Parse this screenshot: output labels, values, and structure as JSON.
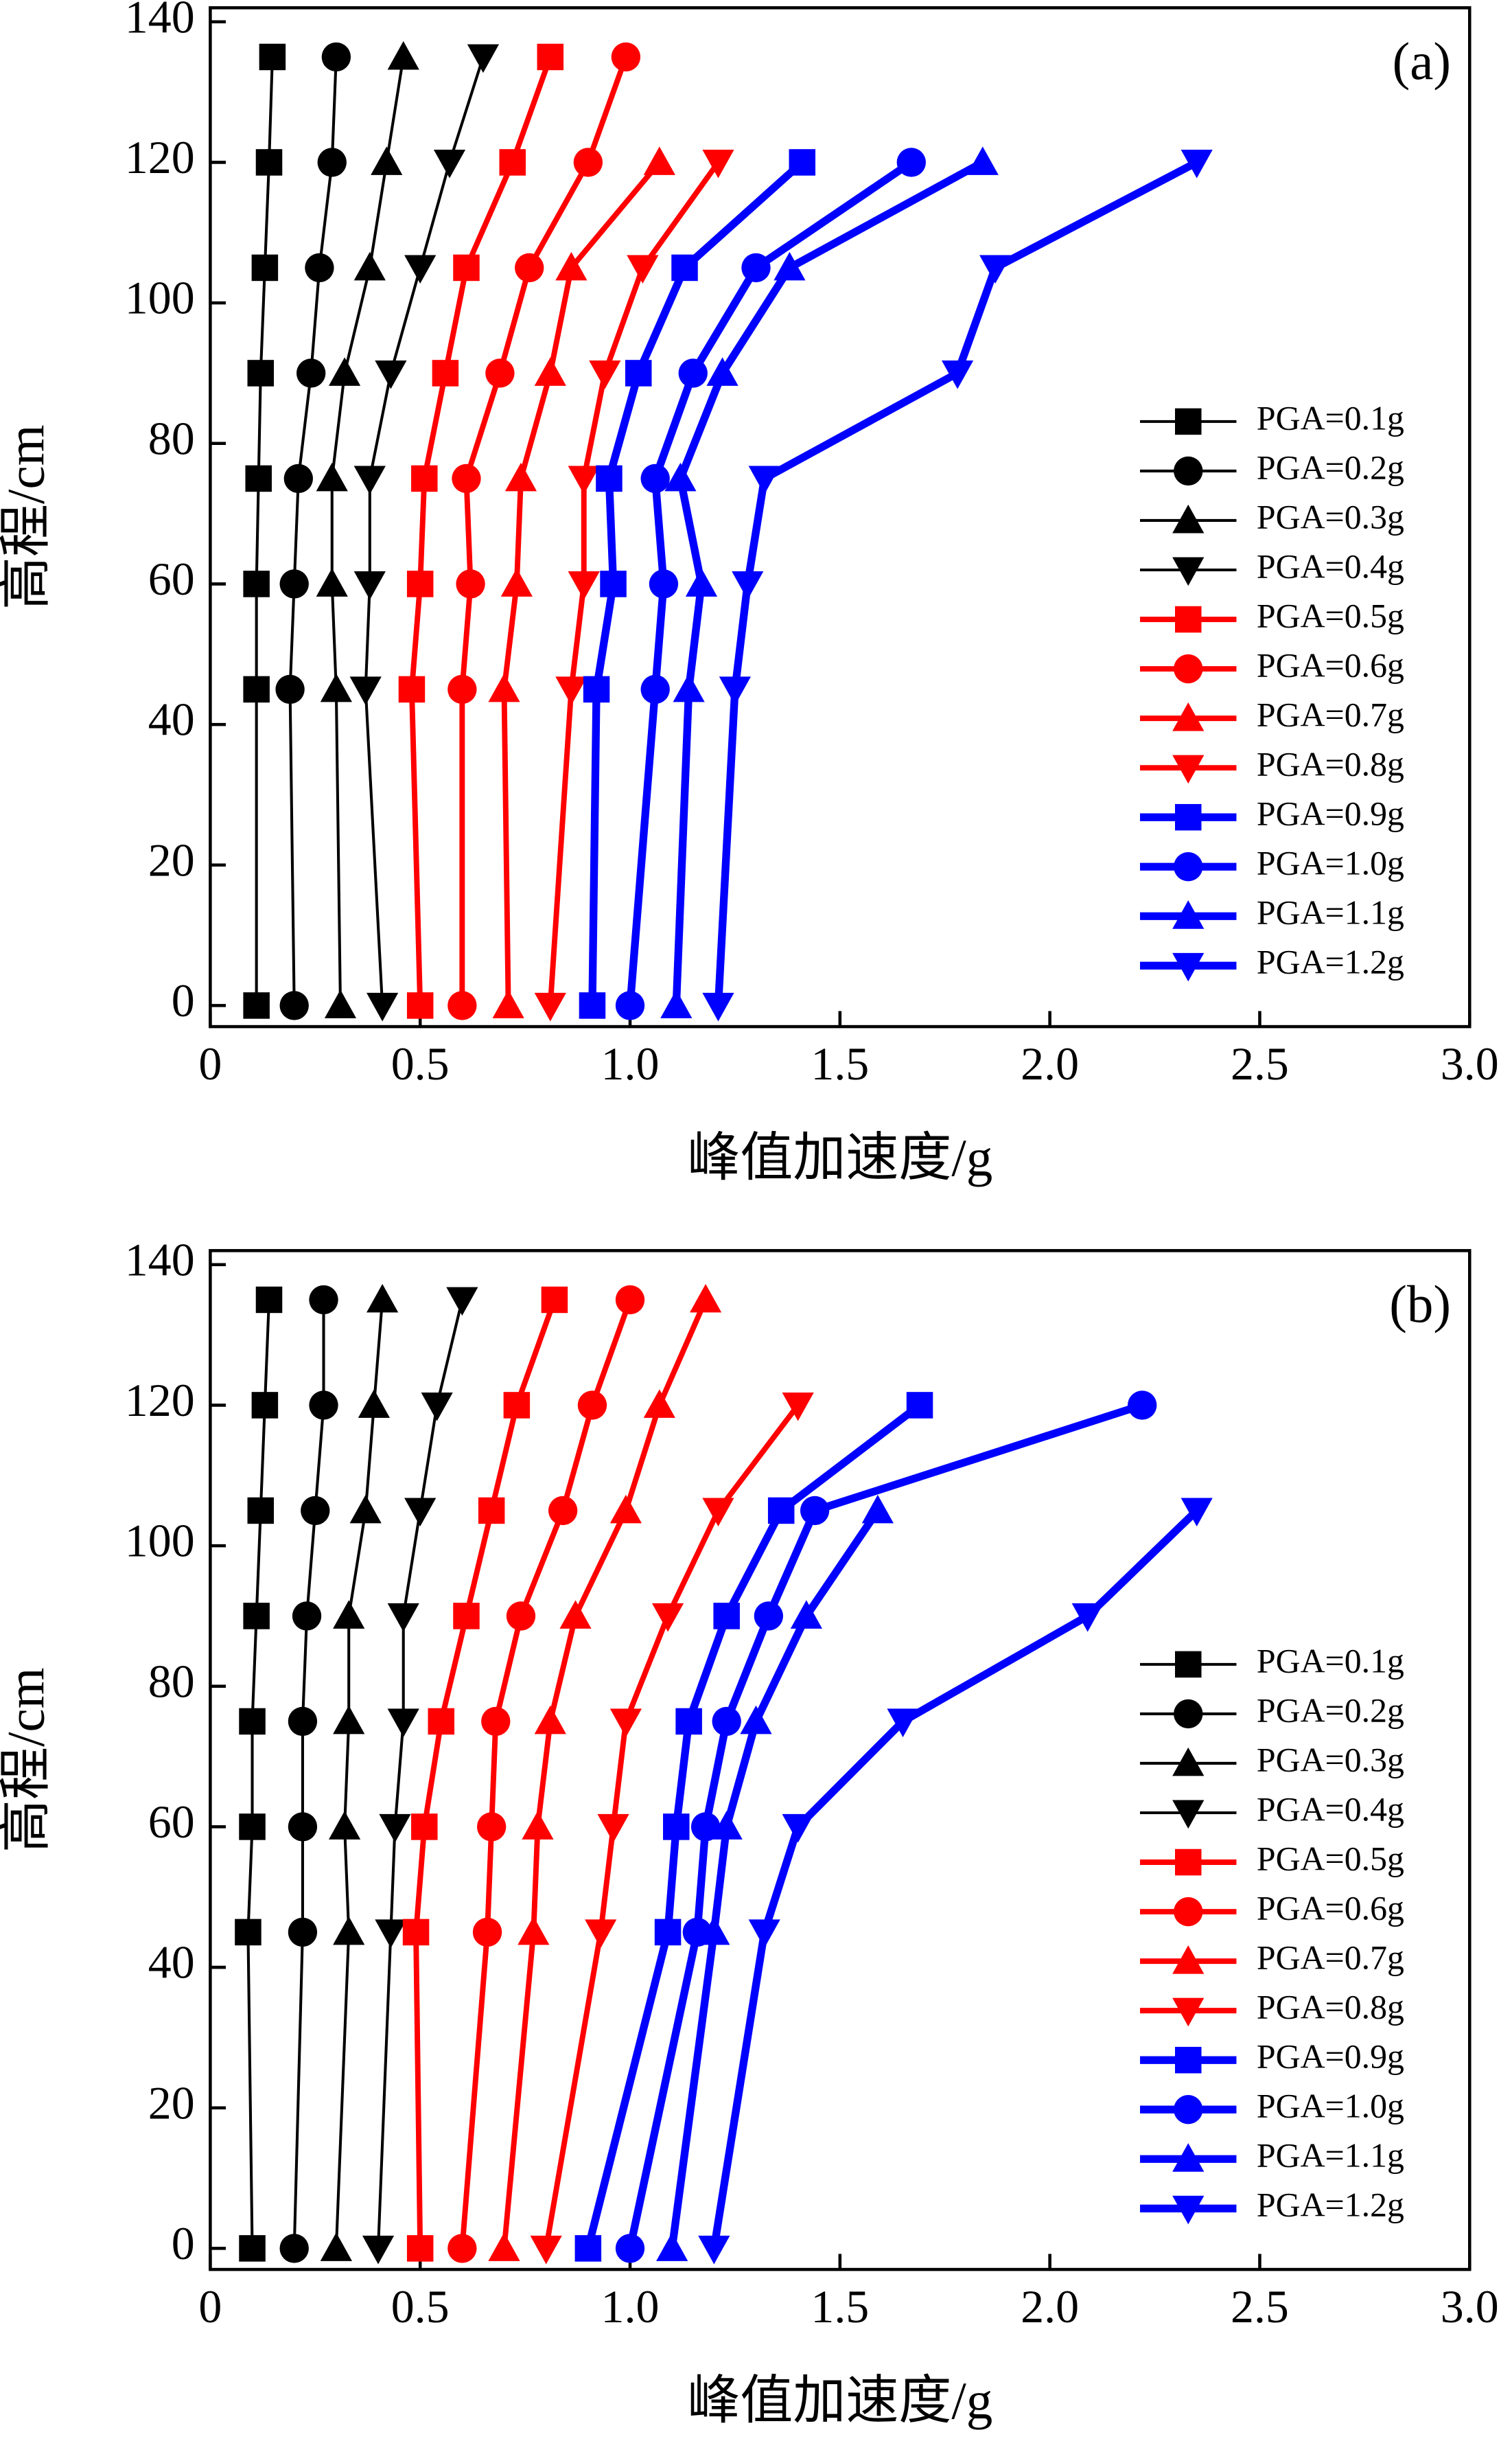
{
  "chart_data": [
    {
      "type": "line",
      "label": "(a)",
      "xlabel": "峰值加速度/g",
      "ylabel": "高程/cm",
      "y": [
        0,
        45,
        60,
        75,
        90,
        105,
        120,
        135
      ],
      "xlim": [
        0,
        3
      ],
      "xticks": [
        0,
        0.5,
        {
          "value": 1,
          "label": "1.0"
        },
        1.5,
        {
          "value": 2,
          "label": "2.0"
        },
        2.5,
        {
          "value": 3,
          "label": "3.0"
        }
      ],
      "ylim": [
        -3,
        142
      ],
      "yticks": [
        0,
        20,
        40,
        60,
        80,
        100,
        120,
        140
      ],
      "legend": "right",
      "series": [
        {
          "name": "PGA=0.1g",
          "color": "#000000",
          "marker": "square",
          "values": [
            0.11,
            0.11,
            0.11,
            0.115,
            0.12,
            0.13,
            0.14,
            0.148
          ]
        },
        {
          "name": "PGA=0.2g",
          "color": "#000000",
          "marker": "circle",
          "values": [
            0.2,
            0.19,
            0.2,
            0.21,
            0.24,
            0.26,
            0.29,
            0.3
          ]
        },
        {
          "name": "PGA=0.3g",
          "color": "#000000",
          "marker": "triangle-up",
          "values": [
            0.31,
            0.3,
            0.29,
            0.29,
            0.32,
            0.38,
            0.42,
            0.46
          ]
        },
        {
          "name": "PGA=0.4g",
          "color": "#000000",
          "marker": "triangle-down",
          "values": [
            0.41,
            0.37,
            0.38,
            0.38,
            0.43,
            0.5,
            0.57,
            0.65
          ]
        },
        {
          "name": "PGA=0.5g",
          "color": "#ff0000",
          "marker": "square",
          "values": [
            0.5,
            0.48,
            0.5,
            0.51,
            0.56,
            0.61,
            0.72,
            0.81
          ]
        },
        {
          "name": "PGA=0.6g",
          "color": "#ff0000",
          "marker": "circle",
          "values": [
            0.6,
            0.6,
            0.62,
            0.61,
            0.69,
            0.76,
            0.9,
            0.99
          ]
        },
        {
          "name": "PGA=0.7g",
          "color": "#ff0000",
          "marker": "triangle-up",
          "values": [
            0.71,
            0.7,
            0.73,
            0.74,
            0.81,
            0.86,
            1.07,
            null
          ]
        },
        {
          "name": "PGA=0.8g",
          "color": "#ff0000",
          "marker": "triangle-down",
          "values": [
            0.81,
            0.86,
            0.89,
            0.89,
            0.94,
            1.03,
            1.21,
            null
          ]
        },
        {
          "name": "PGA=0.9g",
          "color": "#0000ff",
          "marker": "square",
          "values": [
            0.91,
            0.92,
            0.96,
            0.95,
            1.02,
            1.13,
            1.41,
            null
          ]
        },
        {
          "name": "PGA=1.0g",
          "color": "#0000ff",
          "marker": "circle",
          "values": [
            1.0,
            1.06,
            1.08,
            1.06,
            1.15,
            1.3,
            1.67,
            null
          ]
        },
        {
          "name": "PGA=1.1g",
          "color": "#0000ff",
          "marker": "triangle-up",
          "values": [
            1.11,
            1.14,
            1.17,
            1.12,
            1.22,
            1.38,
            1.84,
            null
          ]
        },
        {
          "name": "PGA=1.2g",
          "color": "#0000ff",
          "marker": "triangle-down",
          "values": [
            1.21,
            1.25,
            1.28,
            1.32,
            1.78,
            1.87,
            2.35,
            null
          ]
        }
      ]
    },
    {
      "type": "line",
      "label": "(b)",
      "xlabel": "峰值加速度/g",
      "ylabel": "高程/cm",
      "y": [
        0,
        45,
        60,
        75,
        90,
        105,
        120,
        135
      ],
      "xlim": [
        0,
        3
      ],
      "xticks": [
        0,
        0.5,
        {
          "value": 1,
          "label": "1.0"
        },
        1.5,
        {
          "value": 2,
          "label": "2.0"
        },
        2.5,
        {
          "value": 3,
          "label": "3.0"
        }
      ],
      "ylim": [
        -3,
        142
      ],
      "yticks": [
        0,
        20,
        40,
        60,
        80,
        100,
        120,
        140
      ],
      "legend": "right",
      "series": [
        {
          "name": "PGA=0.1g",
          "color": "#000000",
          "marker": "square",
          "values": [
            0.1,
            0.09,
            0.1,
            0.1,
            0.11,
            0.12,
            0.13,
            0.14
          ]
        },
        {
          "name": "PGA=0.2g",
          "color": "#000000",
          "marker": "circle",
          "values": [
            0.2,
            0.22,
            0.22,
            0.22,
            0.23,
            0.25,
            0.27,
            0.27
          ]
        },
        {
          "name": "PGA=0.3g",
          "color": "#000000",
          "marker": "triangle-up",
          "values": [
            0.3,
            0.33,
            0.32,
            0.33,
            0.33,
            0.37,
            0.39,
            0.41
          ]
        },
        {
          "name": "PGA=0.4g",
          "color": "#000000",
          "marker": "triangle-down",
          "values": [
            0.4,
            0.43,
            0.44,
            0.46,
            0.46,
            0.5,
            0.54,
            0.6
          ]
        },
        {
          "name": "PGA=0.5g",
          "color": "#ff0000",
          "marker": "square",
          "values": [
            0.5,
            0.49,
            0.51,
            0.55,
            0.61,
            0.67,
            0.73,
            0.82
          ]
        },
        {
          "name": "PGA=0.6g",
          "color": "#ff0000",
          "marker": "circle",
          "values": [
            0.6,
            0.66,
            0.67,
            0.68,
            0.74,
            0.84,
            0.91,
            1.0
          ]
        },
        {
          "name": "PGA=0.7g",
          "color": "#ff0000",
          "marker": "triangle-up",
          "values": [
            0.7,
            0.77,
            0.78,
            0.81,
            0.87,
            0.99,
            1.07,
            1.18
          ]
        },
        {
          "name": "PGA=0.8g",
          "color": "#ff0000",
          "marker": "triangle-down",
          "values": [
            0.8,
            0.93,
            0.96,
            0.99,
            1.09,
            1.21,
            1.4,
            null
          ]
        },
        {
          "name": "PGA=0.9g",
          "color": "#0000ff",
          "marker": "square",
          "values": [
            0.9,
            1.09,
            1.11,
            1.14,
            1.23,
            1.36,
            1.69,
            null
          ]
        },
        {
          "name": "PGA=1.0g",
          "color": "#0000ff",
          "marker": "circle",
          "values": [
            1.0,
            1.16,
            1.18,
            1.23,
            1.33,
            1.44,
            2.22,
            null
          ]
        },
        {
          "name": "PGA=1.1g",
          "color": "#0000ff",
          "marker": "triangle-up",
          "values": [
            1.1,
            1.2,
            1.23,
            1.3,
            1.42,
            1.59,
            null,
            null
          ]
        },
        {
          "name": "PGA=1.2g",
          "color": "#0000ff",
          "marker": "triangle-down",
          "values": [
            1.2,
            1.32,
            1.4,
            1.65,
            2.09,
            2.35,
            null,
            null
          ]
        }
      ]
    }
  ]
}
